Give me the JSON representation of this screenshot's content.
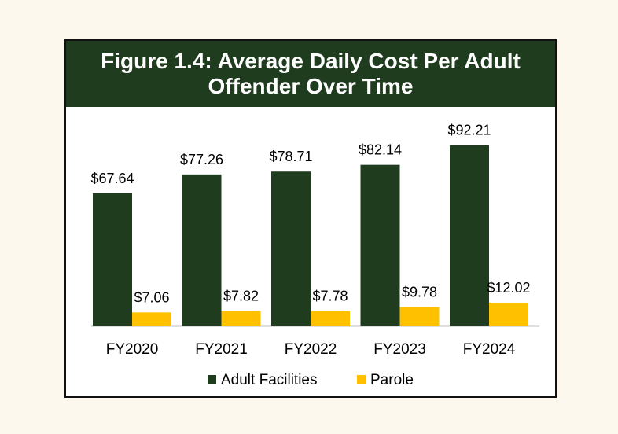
{
  "colors": {
    "title_banner": "#1f3d1e",
    "adult_facilities": "#1f3d1e",
    "parole": "#ffc000"
  },
  "chart_data": {
    "type": "bar",
    "title": "Figure 1.4: Average Daily Cost Per Adult Offender Over Time",
    "categories": [
      "FY2020",
      "FY2021",
      "FY2022",
      "FY2023",
      "FY2024"
    ],
    "series": [
      {
        "name": "Adult Facilities",
        "values": [
          67.64,
          77.26,
          78.71,
          82.14,
          92.21
        ],
        "labels": [
          "$67.64",
          "$77.26",
          "$78.71",
          "$82.14",
          "$92.21"
        ],
        "color": "#1f3d1e"
      },
      {
        "name": "Parole",
        "values": [
          7.06,
          7.82,
          7.78,
          9.78,
          12.02
        ],
        "labels": [
          "$7.06",
          "$7.82",
          "$7.78",
          "$9.78",
          "$12.02"
        ],
        "color": "#ffc000"
      }
    ],
    "ylim": [
      0,
      100
    ],
    "grid": false,
    "legend_position": "bottom"
  }
}
